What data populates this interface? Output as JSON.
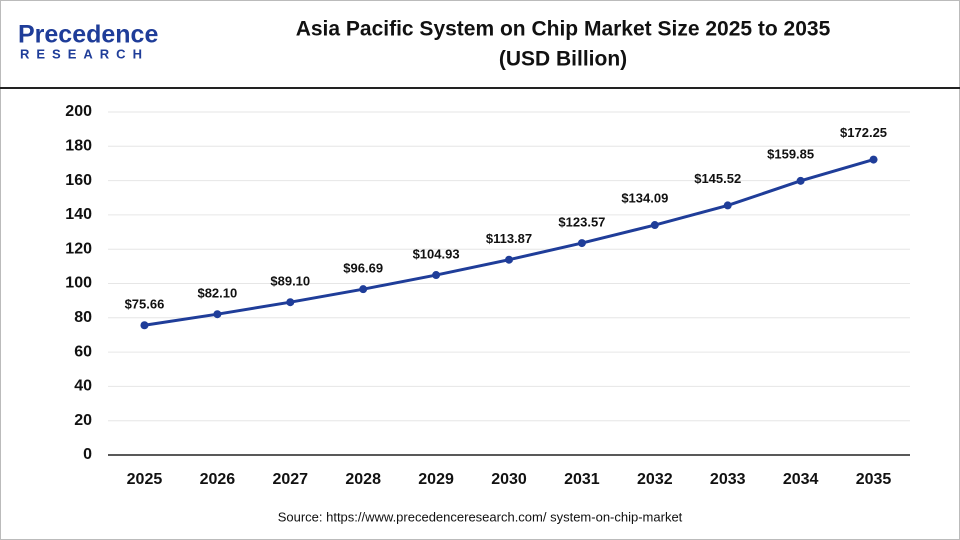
{
  "logo": {
    "name": "Precedence",
    "sub": "RESEARCH"
  },
  "source": "Source: https://www.precedenceresearch.com/ system-on-chip-market",
  "chart_data": {
    "type": "line",
    "title": "Asia Pacific System on Chip Market Size 2025 to 2035",
    "subtitle": "(USD Billion)",
    "categories": [
      "2025",
      "2026",
      "2027",
      "2028",
      "2029",
      "2030",
      "2031",
      "2032",
      "2033",
      "2034",
      "2035"
    ],
    "values": [
      75.66,
      82.1,
      89.1,
      96.69,
      104.93,
      113.87,
      123.57,
      134.09,
      145.52,
      159.85,
      172.25
    ],
    "value_labels": [
      "$75.66",
      "$82.10",
      "$89.10",
      "$96.69",
      "$104.93",
      "$113.87",
      "$123.57",
      "$134.09",
      "$145.52",
      "$159.85",
      "$172.25"
    ],
    "color": "#1f3d99",
    "ylim": [
      0,
      200
    ],
    "yticks": [
      0,
      20,
      40,
      60,
      80,
      100,
      120,
      140,
      160,
      180,
      200
    ],
    "grid": true
  }
}
